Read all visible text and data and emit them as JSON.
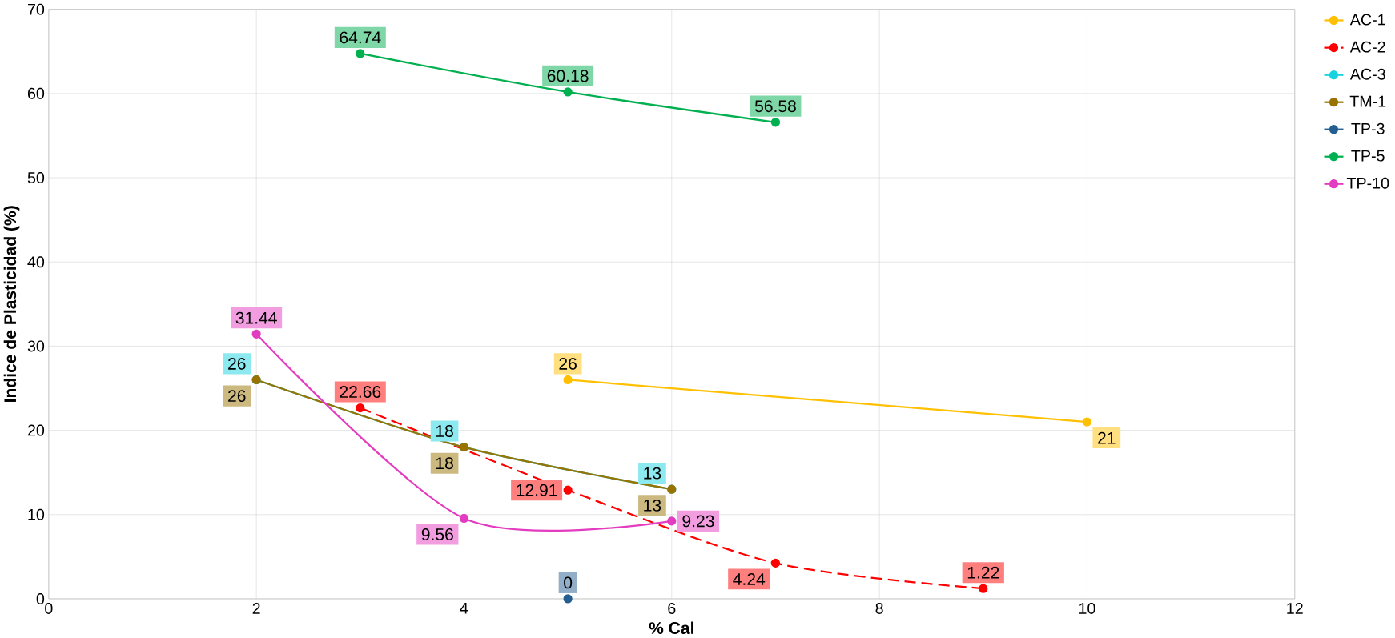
{
  "chart_data": {
    "type": "line",
    "xlabel": "% Cal",
    "ylabel": "Indice de Plasticidad (%)",
    "xlim": [
      0,
      12
    ],
    "xticks": [
      0,
      2,
      4,
      6,
      8,
      10,
      12
    ],
    "ylim": [
      0,
      70
    ],
    "yticks": [
      0,
      10,
      20,
      30,
      40,
      50,
      60,
      70
    ],
    "grid": true,
    "legend": "right",
    "marker": "circle",
    "data_labels": true,
    "series": [
      {
        "name": "AC-1",
        "color": "#ffc000",
        "x": [
          5,
          10
        ],
        "values": [
          26,
          21
        ]
      },
      {
        "name": "AC-2",
        "color": "#ff0000",
        "x": [
          3,
          5,
          7,
          9
        ],
        "values": [
          22.66,
          12.91,
          4.24,
          1.22
        ],
        "line_style": "dashed"
      },
      {
        "name": "AC-3",
        "color": "#17d3e0",
        "x": [
          2,
          4,
          6
        ],
        "values": [
          26,
          18,
          13
        ]
      },
      {
        "name": "TM-1",
        "color": "#997300",
        "x": [
          2,
          4,
          6
        ],
        "values": [
          26,
          18,
          13
        ]
      },
      {
        "name": "TP-3",
        "color": "#255e91",
        "x": [
          5
        ],
        "values": [
          0
        ]
      },
      {
        "name": "TP-5",
        "color": "#00b050",
        "x": [
          3,
          5,
          7
        ],
        "values": [
          64.74,
          60.18,
          56.58
        ]
      },
      {
        "name": "TP-10",
        "color": "#e33cc0",
        "x": [
          2,
          4,
          6
        ],
        "values": [
          31.44,
          9.56,
          9.23
        ]
      }
    ]
  }
}
